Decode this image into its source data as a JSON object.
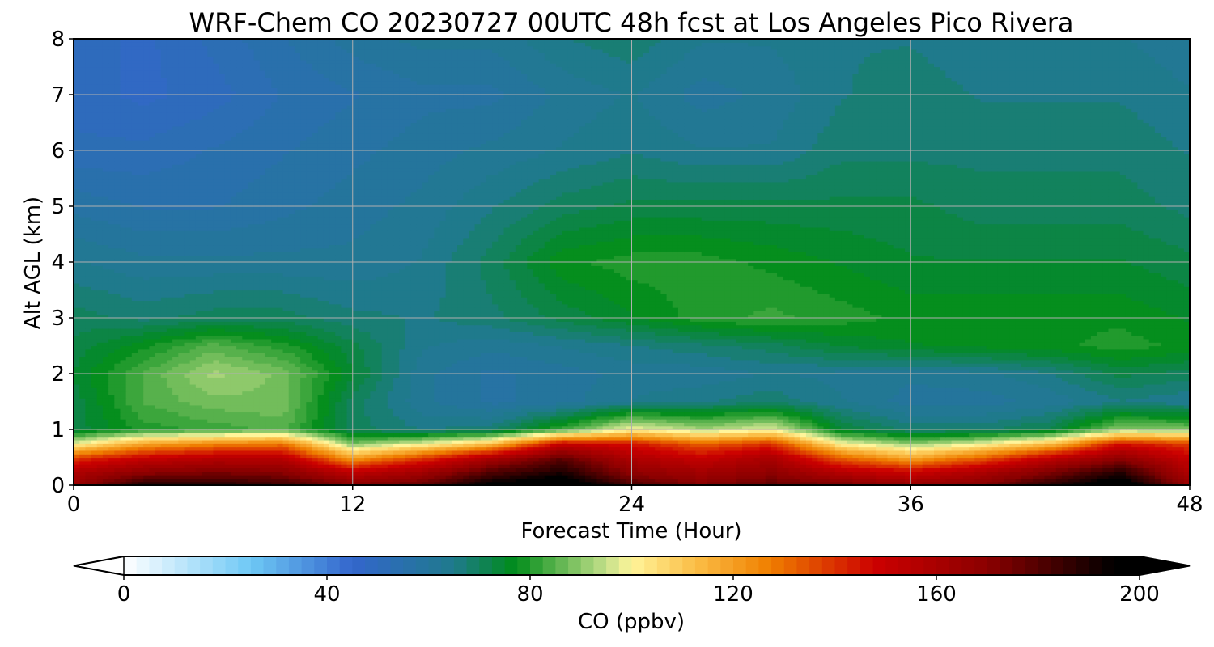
{
  "chart_data": {
    "type": "heatmap",
    "title": "WRF-Chem CO  20230727 00UTC 48h fcst at Los Angeles Pico Rivera",
    "xlabel": "Forecast Time (Hour)",
    "ylabel": "Alt AGL (km)",
    "xlim": [
      0,
      48
    ],
    "ylim": [
      0,
      8
    ],
    "x_ticks": [
      0,
      12,
      24,
      36,
      48
    ],
    "y_ticks": [
      0,
      1,
      2,
      3,
      4,
      5,
      6,
      7,
      8
    ],
    "grid": true,
    "x": [
      0,
      3,
      6,
      9,
      12,
      15,
      18,
      21,
      24,
      27,
      30,
      33,
      36,
      39,
      42,
      45,
      48
    ],
    "y": [
      0,
      0.25,
      0.5,
      0.75,
      1,
      1.5,
      2,
      2.5,
      3,
      4,
      5,
      6,
      7,
      8
    ],
    "z": [
      [
        165,
        190,
        190,
        185,
        172,
        178,
        198,
        205,
        182,
        172,
        178,
        175,
        168,
        172,
        188,
        205,
        165
      ],
      [
        158,
        168,
        172,
        170,
        152,
        162,
        180,
        190,
        168,
        162,
        168,
        155,
        148,
        158,
        172,
        188,
        158
      ],
      [
        138,
        150,
        155,
        155,
        120,
        138,
        160,
        178,
        158,
        150,
        160,
        132,
        118,
        132,
        152,
        168,
        150
      ],
      [
        98,
        118,
        125,
        128,
        88,
        98,
        112,
        150,
        145,
        132,
        140,
        100,
        90,
        98,
        112,
        145,
        138
      ],
      [
        72,
        80,
        82,
        85,
        70,
        66,
        68,
        82,
        100,
        92,
        98,
        74,
        68,
        68,
        72,
        90,
        88
      ],
      [
        72,
        84,
        88,
        88,
        70,
        62,
        58,
        60,
        64,
        66,
        68,
        64,
        60,
        60,
        62,
        66,
        64
      ],
      [
        74,
        84,
        92,
        88,
        74,
        62,
        58,
        60,
        62,
        62,
        64,
        63,
        62,
        63,
        66,
        72,
        70
      ],
      [
        72,
        78,
        85,
        80,
        72,
        64,
        62,
        64,
        66,
        68,
        70,
        74,
        76,
        77,
        78,
        80,
        78
      ],
      [
        70,
        68,
        70,
        70,
        67,
        66,
        68,
        72,
        76,
        80,
        82,
        80,
        78,
        78,
        78,
        78,
        76
      ],
      [
        64,
        62,
        62,
        62,
        62,
        64,
        70,
        78,
        80,
        80,
        78,
        76,
        74,
        74,
        74,
        74,
        72
      ],
      [
        58,
        56,
        56,
        58,
        60,
        62,
        66,
        70,
        72,
        72,
        72,
        72,
        72,
        70,
        70,
        70,
        68
      ],
      [
        52,
        52,
        54,
        56,
        58,
        60,
        62,
        64,
        66,
        64,
        64,
        68,
        68,
        68,
        68,
        68,
        66
      ],
      [
        50,
        48,
        50,
        54,
        56,
        58,
        58,
        62,
        64,
        60,
        62,
        66,
        68,
        66,
        66,
        66,
        64
      ],
      [
        50,
        48,
        52,
        56,
        60,
        62,
        62,
        66,
        68,
        64,
        64,
        66,
        66,
        64,
        64,
        64,
        62
      ]
    ],
    "colorbar": {
      "label": "CO  (ppbv)",
      "min": 0,
      "max": 200,
      "step": 2.5,
      "ticks": [
        0,
        40,
        80,
        120,
        160,
        200
      ],
      "extend": "both",
      "stops": [
        {
          "v": 0,
          "c": "#ffffff"
        },
        {
          "v": 25,
          "c": "#6ec8f5"
        },
        {
          "v": 45,
          "c": "#3366cc"
        },
        {
          "v": 65,
          "c": "#1f7a8c"
        },
        {
          "v": 77,
          "c": "#008c1a"
        },
        {
          "v": 95,
          "c": "#c4e08a"
        },
        {
          "v": 100,
          "c": "#fff59a"
        },
        {
          "v": 112,
          "c": "#fbc04a"
        },
        {
          "v": 127,
          "c": "#f08000"
        },
        {
          "v": 148,
          "c": "#cc0000"
        },
        {
          "v": 170,
          "c": "#8b0000"
        },
        {
          "v": 195,
          "c": "#000000"
        },
        {
          "v": 200,
          "c": "#000000"
        }
      ]
    }
  }
}
